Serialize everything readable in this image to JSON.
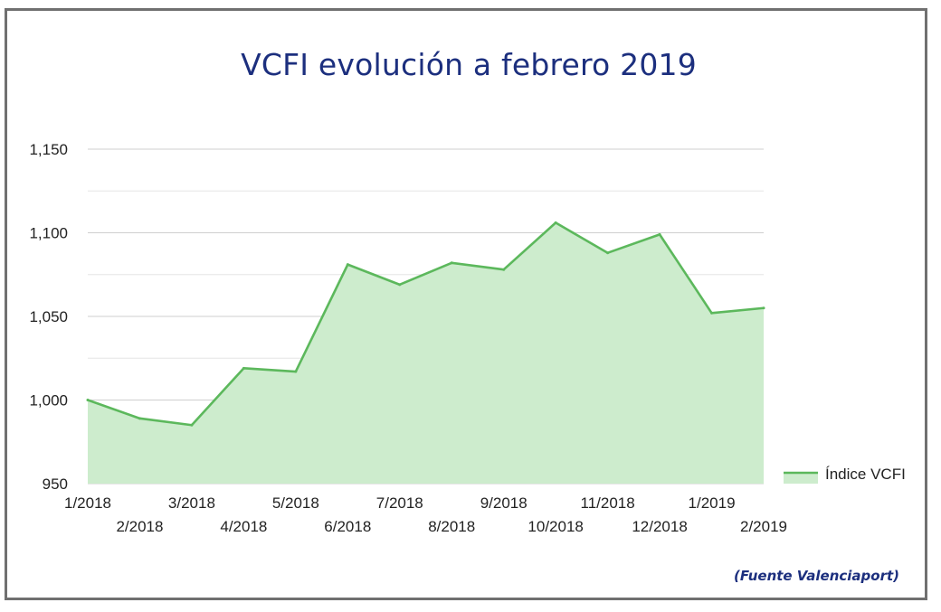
{
  "title": "VCFI evolución a febrero 2019",
  "source": "(Fuente Valenciaport)",
  "colors": {
    "line": "#5cb85c",
    "fill": "#cdeccd",
    "title": "#1c2f7e",
    "grid": "#dddddd"
  },
  "chart_data": {
    "type": "area",
    "title": "VCFI evolución a febrero 2019",
    "xlabel": "",
    "ylabel": "",
    "categories": [
      "1/2018",
      "2/2018",
      "3/2018",
      "4/2018",
      "5/2018",
      "6/2018",
      "7/2018",
      "8/2018",
      "9/2018",
      "10/2018",
      "11/2018",
      "12/2018",
      "1/2019",
      "2/2019"
    ],
    "series": [
      {
        "name": "Índice VCFI",
        "values": [
          1000,
          989,
          985,
          1019,
          1017,
          1081,
          1069,
          1082,
          1078,
          1106,
          1088,
          1099,
          1052,
          1055
        ]
      }
    ],
    "ylim": [
      950,
      1150
    ],
    "yticks": [
      950,
      1000,
      1050,
      1100,
      1150
    ],
    "ytick_labels": [
      "950",
      "1,000",
      "1,050",
      "1,100",
      "1,150"
    ],
    "grid": true,
    "legend_position": "right"
  }
}
